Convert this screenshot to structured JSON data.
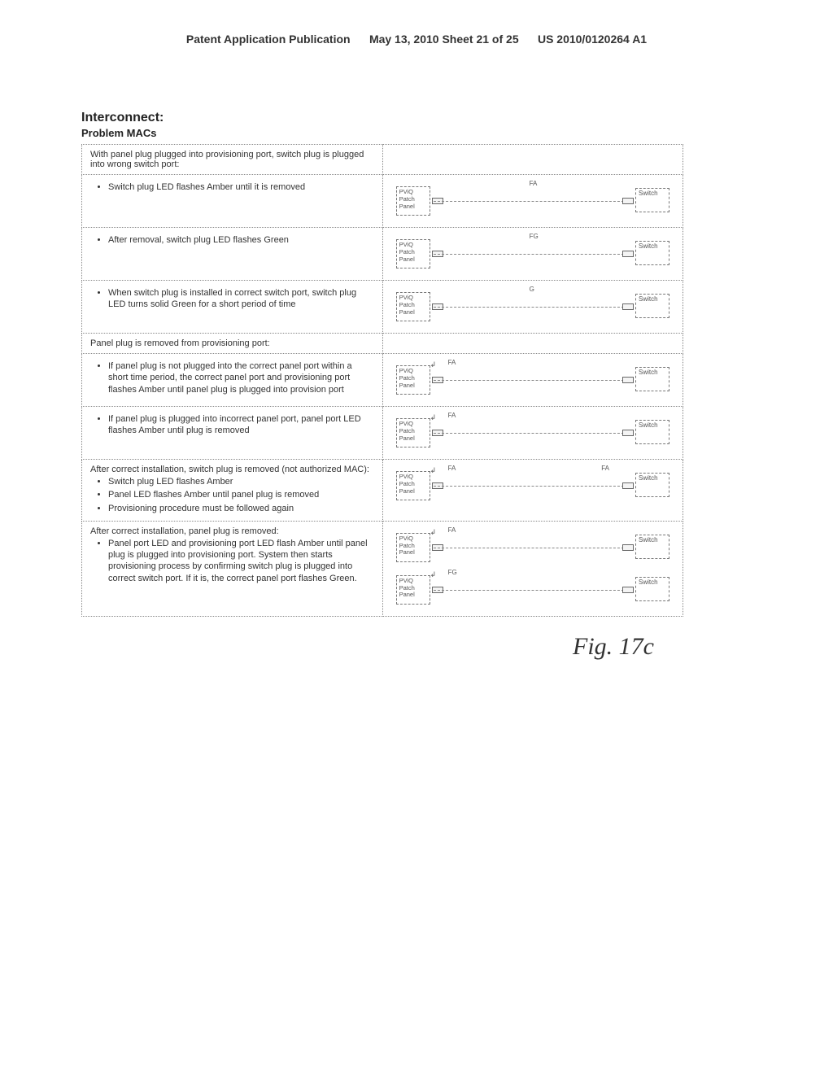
{
  "header": {
    "left": "Patent Application Publication",
    "mid": "May 13, 2010  Sheet 21 of 25",
    "right": "US 2010/0120264 A1"
  },
  "title": "Interconnect:",
  "subtitle": "Problem MACs",
  "boxLabels": {
    "panel": "PViQ\nPatch\nPanel",
    "switch": "Switch"
  },
  "sections": [
    {
      "head": "With panel plug plugged into provisioning port, switch plug is plugged into wrong switch port:",
      "rows": [
        {
          "bullets": [
            "Switch plug LED flashes Amber until it is removed"
          ],
          "led": "FA",
          "ledPos": "mid"
        },
        {
          "bullets": [
            "After removal, switch plug LED flashes Green"
          ],
          "led": "FG",
          "ledPos": "mid"
        },
        {
          "bullets": [
            "When switch plug is installed in correct switch port, switch plug LED turns solid Green for a short period of time"
          ],
          "led": "G",
          "ledPos": "mid"
        }
      ]
    },
    {
      "head": "Panel plug is removed from provisioning port:",
      "rows": [
        {
          "bullets": [
            "If panel plug is not plugged into the correct panel port within a short time period, the correct panel port and provisioning port flashes Amber until panel plug is plugged into provision port"
          ],
          "led": "FA",
          "ledPos": "left",
          "arrow": true
        },
        {
          "bullets": [
            "If panel plug is plugged into incorrect panel port, panel port LED flashes Amber until plug is removed"
          ],
          "led": "FA",
          "ledPos": "left",
          "arrow": true
        }
      ]
    },
    {
      "head": "",
      "rows": [
        {
          "plain": "After correct installation, switch plug is removed (not authorized MAC):",
          "bullets": [
            "Switch plug LED flashes Amber",
            "Panel LED flashes Amber until panel plug is removed",
            "Provisioning procedure must be followed again"
          ],
          "led": "FA",
          "led2": "FA",
          "ledPos": "left",
          "led2Pos": "right",
          "arrow": true
        }
      ]
    },
    {
      "head": "",
      "rows": [
        {
          "plain": "After correct installation, panel plug is removed:",
          "bullets": [
            "Panel port LED and provisioning port LED flash Amber until panel plug is plugged into provisioning port. System then starts provisioning process by confirming switch plug is plugged into correct switch port. If it is, the correct panel port flashes Green."
          ],
          "stack": [
            {
              "led": "FA",
              "pos": "left",
              "arrow": true
            },
            {
              "led": "FG",
              "pos": "left",
              "arrow": true
            }
          ]
        }
      ]
    }
  ],
  "figLabel": "Fig. 17c"
}
